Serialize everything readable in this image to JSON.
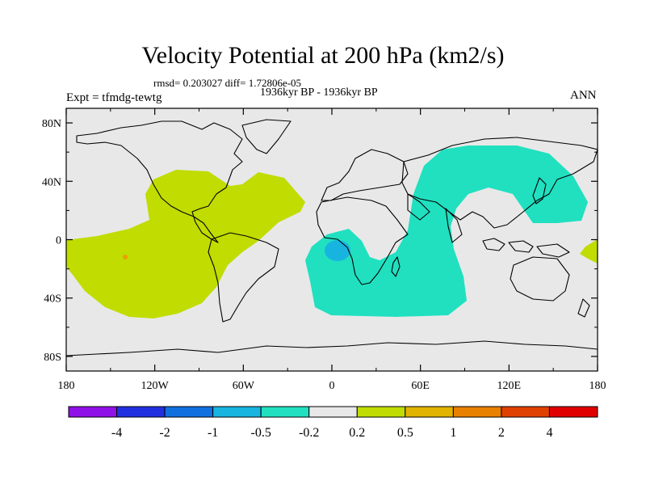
{
  "header": {
    "title": "Velocity Potential at 200 hPa (km2/s)",
    "stats": "rmsd= 0.203027 diff= 1.72806e-05",
    "period": "1936kyr BP - 1936kyr BP",
    "experiment": "Expt = tfmdg-tewtg",
    "season": "ANN"
  },
  "map": {
    "projection": "cylindrical equidistant",
    "background_color": "#e8e8e8",
    "lat_ticks": [
      "80N",
      "40N",
      "0",
      "40S",
      "80S"
    ],
    "lat_values": [
      80,
      40,
      0,
      -40,
      -80
    ],
    "lon_ticks": [
      "180",
      "120W",
      "60W",
      "0",
      "60E",
      "120E",
      "180"
    ],
    "lon_values": [
      -180,
      -120,
      -60,
      0,
      60,
      120,
      180
    ],
    "regions": [
      {
        "name": "positive 0.2 to 0.5 (Pacific-Americas)",
        "level": "0.2 to 0.5",
        "color": "#c0dc00"
      },
      {
        "name": "negative -0.5 to -0.2 (Africa-Asia)",
        "level": "-0.5 to -0.2",
        "color": "#20e0c0"
      },
      {
        "name": "negative -1 to -0.5 (Congo basin)",
        "level": "-1 to -0.5",
        "color": "#18b4e0"
      },
      {
        "name": "positive 0.5 to 1 (central Pacific spot)",
        "level": "0.5 to 1",
        "color": "#e8a000"
      }
    ]
  },
  "colorbar": {
    "colors": [
      "#9010e8",
      "#2030e0",
      "#1070e0",
      "#18b4e0",
      "#20e0c0",
      "#e8e8e8",
      "#c0dc00",
      "#e0b400",
      "#e88000",
      "#e04000",
      "#e00000"
    ],
    "labels": [
      "-4",
      "-2",
      "-1",
      "-0.5",
      "-0.2",
      "0.2",
      "0.5",
      "1",
      "2",
      "4"
    ]
  }
}
